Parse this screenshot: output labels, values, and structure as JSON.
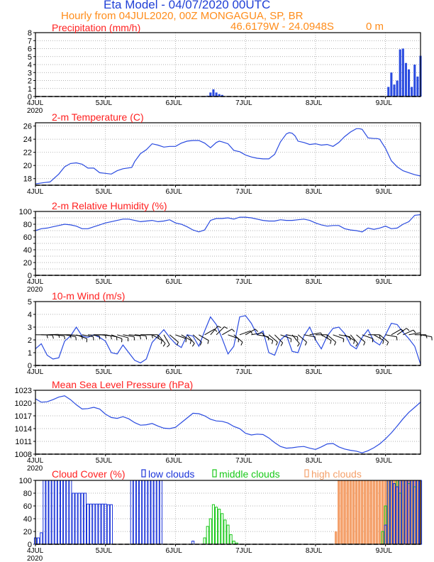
{
  "header": {
    "title": "Eta Model - 04/07/2020 00UTC",
    "subtitle": "Hourly from 04JUL2020, 00Z  MONGAGUA, SP, BR",
    "coords": "46.6179W - 24.0948S",
    "elevation": "0   m"
  },
  "colors": {
    "title": "#1f3fd6",
    "subtitle": "#ff8c1a",
    "panel_title": "#ff2020",
    "line": "#2a4be0",
    "low_clouds": "#1a33d9",
    "middle_clouds": "#18c818",
    "high_clouds": "#f4a06a",
    "grid": "#999999",
    "wind_barb": "#000000"
  },
  "x_axis": {
    "tick_labels": [
      "4JUL",
      "5JUL",
      "6JUL",
      "7JUL",
      "8JUL",
      "9JUL"
    ],
    "year_label": "2020",
    "range_hours": [
      0,
      132
    ]
  },
  "chart_data": [
    {
      "type": "bar",
      "id": "precip",
      "title": "Precipitation (mm/h)",
      "ylim": [
        0,
        8
      ],
      "yticks": [
        0,
        1,
        2,
        3,
        4,
        5,
        6,
        7,
        8
      ],
      "grid": true,
      "color_key": "line",
      "x": [
        59,
        60,
        61,
        62,
        63,
        64,
        121,
        122,
        123,
        124,
        125,
        126,
        127,
        128,
        129,
        130,
        131,
        132
      ],
      "values": [
        0.1,
        0.5,
        0.9,
        0.5,
        0.3,
        0.2,
        1.2,
        3.0,
        1.5,
        2.0,
        5.9,
        6.0,
        4.2,
        3.4,
        1.2,
        4.0,
        2.5,
        5.1
      ]
    },
    {
      "type": "line",
      "id": "temp",
      "title": "2-m Temperature (C)",
      "ylim": [
        17,
        26.5
      ],
      "yticks": [
        18,
        20,
        22,
        24,
        26
      ],
      "grid": true,
      "color_key": "line",
      "x": [
        0,
        3,
        5,
        8,
        10,
        12,
        14,
        16,
        18,
        20,
        22,
        24,
        26,
        28,
        30,
        33,
        34,
        36,
        38,
        40,
        42,
        44,
        46,
        48,
        50,
        52,
        54,
        56,
        58,
        60,
        62,
        63,
        64,
        66,
        68,
        70,
        72,
        74,
        76,
        78,
        80,
        82,
        84,
        86,
        87,
        88,
        89,
        90,
        92,
        94,
        96,
        98,
        100,
        102,
        104,
        106,
        108,
        110,
        111,
        112,
        114,
        116,
        117,
        118,
        120,
        122,
        124,
        126,
        128,
        130,
        132
      ],
      "values": [
        17.2,
        17.4,
        17.5,
        18.7,
        19.8,
        20.3,
        20.4,
        20.2,
        19.6,
        19.6,
        18.9,
        18.8,
        18.7,
        19.2,
        19.5,
        19.7,
        20.6,
        21.8,
        22.4,
        23.3,
        23.1,
        22.8,
        22.9,
        22.9,
        23.4,
        23.7,
        23.8,
        23.8,
        23.4,
        22.7,
        23.5,
        23.7,
        23.6,
        23.3,
        22.3,
        22.1,
        21.6,
        21.3,
        21.1,
        21.0,
        21.0,
        21.7,
        23.6,
        24.8,
        25.0,
        24.9,
        24.5,
        23.7,
        23.5,
        23.2,
        23.3,
        23.1,
        23.2,
        22.9,
        23.5,
        24.4,
        25.1,
        25.6,
        25.6,
        25.5,
        24.2,
        24.1,
        24.1,
        24.0,
        22.6,
        20.7,
        19.8,
        19.2,
        18.9,
        18.6,
        18.4
      ]
    },
    {
      "type": "line",
      "id": "rh",
      "title": "2-m Relative Humidity (%)",
      "ylim": [
        0,
        100
      ],
      "yticks": [
        0,
        10,
        20,
        30,
        40,
        50,
        60,
        70,
        80,
        90,
        100
      ],
      "ytick_labels": [
        "0",
        "",
        "20",
        "",
        "40",
        "",
        "60",
        "",
        "80",
        "",
        "100"
      ],
      "grid": true,
      "color_key": "line",
      "x": [
        0,
        2,
        4,
        6,
        8,
        10,
        12,
        14,
        16,
        18,
        20,
        22,
        24,
        26,
        28,
        30,
        32,
        34,
        36,
        38,
        40,
        42,
        44,
        46,
        48,
        50,
        52,
        54,
        56,
        58,
        60,
        62,
        64,
        66,
        68,
        70,
        72,
        74,
        76,
        78,
        80,
        82,
        84,
        86,
        88,
        90,
        92,
        94,
        96,
        98,
        100,
        102,
        104,
        106,
        108,
        110,
        112,
        114,
        116,
        118,
        120,
        122,
        124,
        126,
        128,
        130,
        132
      ],
      "values": [
        70,
        73,
        74,
        76,
        78,
        80,
        79,
        77,
        73,
        73,
        76,
        79,
        82,
        84,
        86,
        88,
        88,
        86,
        84,
        85,
        86,
        84,
        85,
        87,
        82,
        80,
        76,
        71,
        68,
        71,
        86,
        89,
        89,
        90,
        88,
        91,
        91,
        90,
        88,
        86,
        85,
        85,
        87,
        86,
        86,
        87,
        88,
        86,
        82,
        79,
        77,
        78,
        78,
        73,
        71,
        70,
        68,
        74,
        72,
        74,
        77,
        73,
        74,
        80,
        84,
        94,
        95
      ]
    },
    {
      "type": "line",
      "id": "wind",
      "title": "10-m Wind (m/s)",
      "ylim": [
        0,
        5
      ],
      "yticks": [
        0,
        1,
        2,
        3,
        4,
        5
      ],
      "grid": true,
      "color_key": "line",
      "barbs_at_y": 2.4,
      "x": [
        0,
        2,
        4,
        6,
        8,
        10,
        12,
        14,
        16,
        18,
        20,
        22,
        24,
        26,
        28,
        30,
        32,
        34,
        36,
        38,
        40,
        42,
        44,
        46,
        48,
        50,
        52,
        54,
        56,
        58,
        60,
        62,
        64,
        66,
        68,
        70,
        72,
        74,
        76,
        78,
        80,
        82,
        84,
        86,
        88,
        90,
        92,
        94,
        96,
        98,
        100,
        102,
        104,
        106,
        108,
        110,
        112,
        114,
        116,
        118,
        120,
        122,
        124,
        126,
        128,
        130,
        132
      ],
      "values": [
        1.3,
        1.7,
        0.8,
        0.5,
        0.6,
        1.9,
        2.3,
        3.0,
        2.3,
        2.2,
        2.4,
        2.2,
        1.9,
        1.0,
        0.9,
        1.6,
        1.0,
        0.4,
        0.2,
        0.5,
        1.8,
        2.3,
        2.8,
        2.2,
        1.7,
        1.4,
        2.4,
        2.3,
        1.5,
        2.7,
        3.8,
        3.2,
        2.1,
        0.9,
        1.5,
        3.8,
        3.9,
        3.3,
        2.4,
        2.7,
        1.0,
        0.8,
        2.0,
        2.4,
        1.1,
        1.0,
        2.3,
        3.0,
        2.0,
        1.3,
        2.3,
        2.9,
        3.0,
        2.5,
        1.6,
        1.3,
        2.2,
        2.8,
        1.9,
        1.6,
        2.4,
        3.3,
        3.2,
        2.6,
        2.1,
        1.5,
        0.1
      ],
      "barbs_x": [
        0,
        2,
        4,
        6,
        8,
        10,
        12,
        14,
        16,
        18,
        20,
        22,
        24,
        26,
        28,
        30,
        32,
        34,
        36,
        38,
        40,
        42,
        44,
        46,
        48,
        50,
        52,
        54,
        56,
        58,
        60,
        62,
        64,
        66,
        68,
        70,
        72,
        74,
        76,
        78,
        80,
        82,
        84,
        86,
        88,
        90,
        92,
        94,
        96,
        98,
        100,
        102,
        104,
        106,
        108,
        110,
        112,
        114,
        116,
        118,
        120,
        122,
        124,
        126,
        128,
        130,
        132
      ],
      "barbs_dir_deg": [
        90,
        92,
        88,
        95,
        90,
        100,
        95,
        110,
        100,
        95,
        90,
        95,
        100,
        110,
        105,
        100,
        95,
        95,
        90,
        90,
        120,
        140,
        150,
        130,
        110,
        120,
        140,
        130,
        120,
        60,
        40,
        45,
        60,
        110,
        130,
        70,
        60,
        80,
        100,
        120,
        130,
        135,
        110,
        100,
        140,
        130,
        100,
        80,
        90,
        120,
        130,
        110,
        100,
        120,
        140,
        130,
        110,
        90,
        120,
        130,
        100,
        60,
        55,
        65,
        80,
        90,
        100
      ]
    },
    {
      "type": "line",
      "id": "mslp",
      "title": "Mean Sea Level Pressure (hPa)",
      "ylim": [
        1008,
        1023
      ],
      "yticks": [
        1008,
        1011,
        1014,
        1017,
        1020,
        1023
      ],
      "grid": true,
      "color_key": "line",
      "x": [
        0,
        2,
        4,
        6,
        8,
        10,
        12,
        14,
        16,
        18,
        20,
        22,
        24,
        26,
        28,
        30,
        32,
        34,
        36,
        38,
        40,
        42,
        44,
        46,
        48,
        50,
        52,
        54,
        56,
        58,
        60,
        62,
        64,
        66,
        68,
        70,
        72,
        74,
        76,
        78,
        80,
        82,
        84,
        86,
        88,
        90,
        92,
        94,
        96,
        98,
        100,
        102,
        104,
        106,
        108,
        110,
        112,
        114,
        116,
        118,
        120,
        122,
        124,
        126,
        128,
        130,
        132
      ],
      "values": [
        1021.0,
        1020.2,
        1020.3,
        1020.8,
        1021.4,
        1021.7,
        1020.8,
        1019.6,
        1018.6,
        1018.7,
        1019.0,
        1018.6,
        1017.4,
        1016.6,
        1016.4,
        1016.8,
        1016.3,
        1015.4,
        1014.8,
        1014.9,
        1015.2,
        1014.6,
        1014.1,
        1014.0,
        1014.3,
        1015.4,
        1016.5,
        1017.6,
        1017.5,
        1017.0,
        1016.2,
        1015.8,
        1015.7,
        1015.3,
        1014.5,
        1014.0,
        1012.9,
        1012.5,
        1012.7,
        1012.6,
        1011.8,
        1010.7,
        1009.8,
        1009.4,
        1009.5,
        1009.7,
        1009.8,
        1009.4,
        1009.1,
        1009.7,
        1010.4,
        1010.5,
        1009.7,
        1009.2,
        1008.9,
        1008.7,
        1008.3,
        1008.8,
        1009.5,
        1010.4,
        1011.6,
        1013.0,
        1014.6,
        1016.3,
        1017.8,
        1019.0,
        1020.2
      ]
    },
    {
      "type": "bar",
      "id": "cloud",
      "title": "Cloud Cover (%)",
      "legend": [
        "low clouds",
        "middle clouds",
        "high clouds"
      ],
      "ylim": [
        0,
        100
      ],
      "yticks": [
        0,
        20,
        40,
        60,
        80,
        100
      ],
      "grid": true,
      "series": [
        {
          "name": "low clouds",
          "color_key": "low_clouds",
          "x": [
            0,
            1,
            2,
            3,
            4,
            5,
            6,
            7,
            8,
            9,
            10,
            11,
            12,
            13,
            14,
            15,
            16,
            17,
            18,
            19,
            20,
            21,
            22,
            23,
            24,
            25,
            26,
            27,
            28,
            29,
            30,
            31,
            32,
            33,
            34,
            35,
            36,
            37,
            38,
            39,
            40,
            41,
            42,
            43,
            44,
            45,
            46,
            47,
            48,
            49,
            50,
            51,
            52,
            53,
            54,
            55,
            56,
            57,
            58,
            59,
            60,
            61,
            62,
            63,
            64,
            65,
            66,
            67,
            68,
            69,
            70,
            71,
            72,
            73,
            74,
            75,
            76,
            77,
            78,
            79,
            80,
            81,
            82,
            83,
            84,
            85,
            86,
            87,
            88,
            89,
            90,
            91,
            92,
            93,
            94,
            95,
            96,
            97,
            98,
            99,
            100,
            101,
            102,
            103,
            104,
            105,
            106,
            107,
            108,
            109,
            110,
            111,
            112,
            113,
            114,
            115,
            116,
            117,
            118,
            119,
            120,
            121,
            122,
            123,
            124,
            125,
            126,
            127,
            128,
            129,
            130,
            131,
            132
          ],
          "values": [
            10,
            10,
            18,
            100,
            100,
            100,
            100,
            100,
            100,
            100,
            100,
            100,
            100,
            80,
            80,
            80,
            80,
            80,
            63,
            63,
            63,
            63,
            63,
            63,
            63,
            62,
            62,
            0,
            0,
            0,
            0,
            0,
            0,
            100,
            100,
            100,
            100,
            100,
            100,
            100,
            100,
            100,
            100,
            100,
            0,
            0,
            0,
            0,
            0,
            0,
            0,
            0,
            0,
            0,
            5,
            0,
            0,
            0,
            0,
            0,
            0,
            0,
            0,
            0,
            0,
            0,
            0,
            0,
            0,
            0,
            0,
            0,
            0,
            0,
            0,
            0,
            0,
            0,
            0,
            0,
            0,
            0,
            0,
            0,
            0,
            0,
            0,
            0,
            0,
            0,
            0,
            0,
            0,
            0,
            0,
            0,
            0,
            0,
            0,
            0,
            0,
            0,
            0,
            0,
            0,
            0,
            0,
            0,
            0,
            0,
            0,
            0,
            0,
            0,
            0,
            0,
            0,
            0,
            0,
            0,
            30,
            100,
            100,
            95,
            90,
            100,
            100,
            100,
            100,
            100,
            100,
            100,
            100
          ]
        },
        {
          "name": "middle clouds",
          "color_key": "middle_clouds",
          "x": [
            58,
            59,
            60,
            61,
            62,
            63,
            64,
            65,
            66,
            67,
            68,
            69,
            119,
            120,
            121,
            122,
            123,
            124,
            125,
            126,
            127,
            128,
            129,
            130,
            131,
            132
          ],
          "values": [
            10,
            28,
            40,
            62,
            58,
            55,
            48,
            38,
            30,
            15,
            5,
            2,
            20,
            60,
            100,
            100,
            95,
            100,
            80,
            100,
            100,
            95,
            100,
            90,
            100,
            100
          ]
        },
        {
          "name": "high clouds",
          "color_key": "high_clouds",
          "x": [
            103,
            104,
            105,
            106,
            107,
            108,
            109,
            110,
            111,
            112,
            113,
            114,
            115,
            116,
            117,
            118,
            119,
            120,
            121,
            122,
            123,
            124,
            125,
            126,
            127,
            128,
            129,
            130,
            131,
            132
          ],
          "values": [
            20,
            100,
            100,
            100,
            100,
            100,
            100,
            100,
            100,
            100,
            100,
            100,
            100,
            100,
            100,
            100,
            100,
            100,
            100,
            100,
            100,
            100,
            100,
            100,
            100,
            100,
            100,
            100,
            100,
            100
          ]
        }
      ]
    }
  ]
}
